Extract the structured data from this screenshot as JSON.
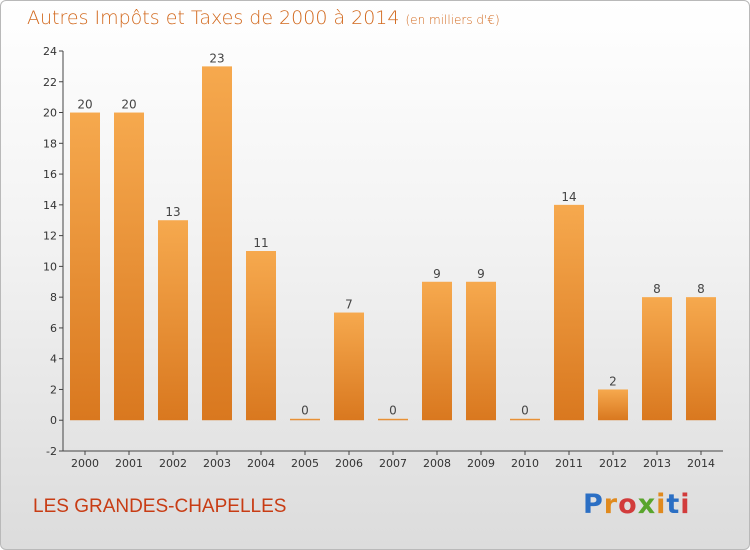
{
  "header": {
    "title": "Autres Impôts et Taxes de 2000 à 2014",
    "unit": "(en milliers d'€)"
  },
  "footer": {
    "commune": "LES GRANDES-CHAPELLES",
    "logo_text": "Proxiti",
    "logo_colors": [
      "#2b6fc4",
      "#e08a1e",
      "#d23c3c",
      "#59a52c",
      "#e08a1e",
      "#2b6fc4",
      "#d23c3c"
    ]
  },
  "colors": {
    "title": "#d2691e",
    "bar_light": "#f6a94e",
    "bar_dark": "#d9781f",
    "commune": "#c83c14"
  },
  "chart_data": {
    "type": "bar",
    "title": "Autres Impôts et Taxes de 2000 à 2014",
    "subtitle": "(en milliers d'€)",
    "xlabel": "",
    "ylabel": "",
    "categories": [
      "2000",
      "2001",
      "2002",
      "2003",
      "2004",
      "2005",
      "2006",
      "2007",
      "2008",
      "2009",
      "2010",
      "2011",
      "2012",
      "2013",
      "2014"
    ],
    "values": [
      20,
      20,
      13,
      23,
      11,
      0,
      7,
      0,
      9,
      9,
      0,
      14,
      2,
      8,
      8
    ],
    "ylim": [
      -2,
      24
    ],
    "yticks": [
      -2,
      0,
      2,
      4,
      6,
      8,
      10,
      12,
      14,
      16,
      18,
      20,
      22,
      24
    ],
    "grid": false,
    "legend": "none"
  }
}
